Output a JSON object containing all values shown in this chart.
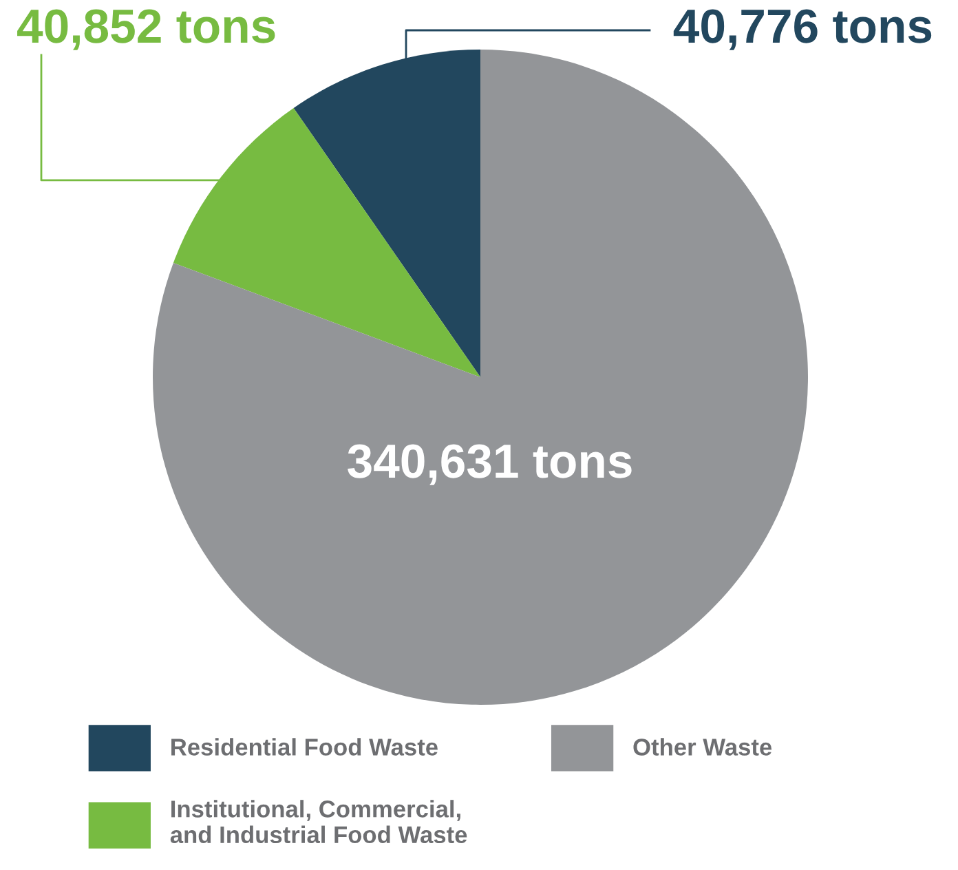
{
  "chart_data": {
    "type": "pie",
    "categories": [
      "Residential Food Waste",
      "Institutional, Commercial,\nand Industrial Food Waste",
      "Other Waste"
    ],
    "values": [
      40776,
      40852,
      340631
    ],
    "colors": [
      "#22475e",
      "#77bb41",
      "#939598"
    ],
    "value_labels": [
      "40,776 tons",
      "40,852 tons",
      "340,631 tons"
    ],
    "legend": "bottom"
  }
}
